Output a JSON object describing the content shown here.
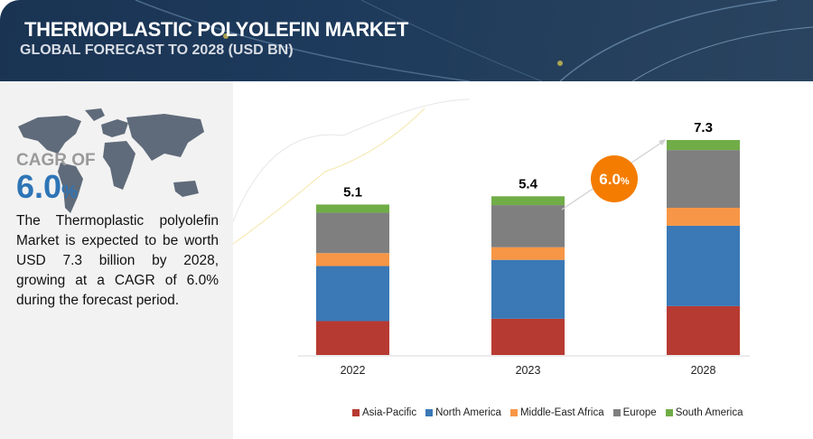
{
  "header": {
    "title": "THERMOPLASTIC POLYOLEFIN MARKET",
    "subtitle": "GLOBAL FORECAST TO 2028 (USD BN)"
  },
  "left_panel": {
    "cagr_label": "CAGR OF",
    "cagr_value": "6.0",
    "cagr_unit": "%",
    "description": "The Thermoplastic polyolefin Market is expected to be worth USD 7.3 billion by 2028, growing at a CAGR of 6.0% during the forecast period."
  },
  "growth_badge": {
    "value": "6.0",
    "unit": "%",
    "color": "#f47c00"
  },
  "chart_data": {
    "type": "bar",
    "stacked": true,
    "categories": [
      "2022",
      "2023",
      "2028"
    ],
    "totals": [
      5.1,
      5.4,
      7.3
    ],
    "total_labels": [
      "5.1",
      "5.4",
      "7.3"
    ],
    "series": [
      {
        "name": "Asia-Pacific",
        "color": "#b73a32",
        "values": [
          1.15,
          1.23,
          1.66
        ]
      },
      {
        "name": "North America",
        "color": "#3a78b6",
        "values": [
          1.87,
          2.0,
          2.73
        ]
      },
      {
        "name": "Middle-East Africa",
        "color": "#f79646",
        "values": [
          0.44,
          0.43,
          0.61
        ]
      },
      {
        "name": "Europe",
        "color": "#7f7f7f",
        "values": [
          1.37,
          1.43,
          1.96
        ]
      },
      {
        "name": "South America",
        "color": "#70ad47",
        "values": [
          0.28,
          0.3,
          0.34
        ]
      }
    ],
    "xlabel": "",
    "ylabel": "",
    "legend": "bottom",
    "grid": false
  }
}
